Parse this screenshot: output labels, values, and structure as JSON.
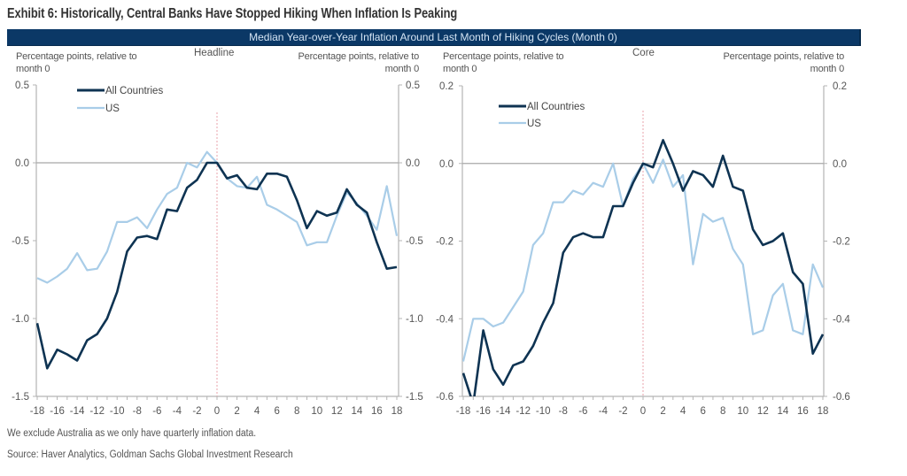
{
  "title": "Exhibit 6: Historically, Central Banks Have Stopped Hiking When Inflation Is Peaking",
  "banner": "Median Year-over-Year Inflation Around Last Month of Hiking Cycles (Month 0)",
  "footnotes": {
    "note": "We exclude Australia as we only have quarterly inflation data.",
    "source": "Source: Haver Analytics, Goldman Sachs Global Investment Research"
  },
  "colors": {
    "banner": "#0b3866",
    "all_countries": "#0e3352",
    "us": "#a9cde8",
    "reference_line": "#e9a3ab",
    "axis": "#b4b4b4"
  },
  "chart_data": [
    {
      "id": "headline",
      "type": "line",
      "title": "Headline",
      "ylabel_left": "Percentage points, relative to\nmonth 0",
      "ylabel_right": "Percentage points, relative to\nmonth 0",
      "xlabel": "",
      "xlim": [
        -18,
        18
      ],
      "ylim": [
        -1.5,
        0.5
      ],
      "x": [
        -18,
        -17,
        -16,
        -15,
        -14,
        -13,
        -12,
        -11,
        -10,
        -9,
        -8,
        -7,
        -6,
        -5,
        -4,
        -3,
        -2,
        -1,
        0,
        1,
        2,
        3,
        4,
        5,
        6,
        7,
        8,
        9,
        10,
        11,
        12,
        13,
        14,
        15,
        16,
        17,
        18
      ],
      "xticks": [
        -18,
        -16,
        -14,
        -12,
        -10,
        -8,
        -6,
        -4,
        -2,
        0,
        2,
        4,
        6,
        8,
        10,
        12,
        14,
        16,
        18
      ],
      "xtick_labels": [
        "-18",
        "-16",
        "-14",
        "-12",
        "-10",
        "-8",
        "-6",
        "-4",
        "-2",
        "0",
        "2",
        "4",
        "6",
        "8",
        "10",
        "12",
        "14",
        "16",
        "18"
      ],
      "yticks": [
        0.5,
        0.0,
        -0.5,
        -1.0,
        -1.5
      ],
      "ytick_labels": [
        "0.5",
        "0.0",
        "-0.5",
        "-1.0",
        "-1.5"
      ],
      "grid": false,
      "zero_line": true,
      "reference_line_x": 0,
      "legend": "top-left",
      "series": [
        {
          "name": "All Countries",
          "color": "#0e3352",
          "values": [
            -1.03,
            -1.32,
            -1.2,
            -1.23,
            -1.27,
            -1.14,
            -1.1,
            -1.0,
            -0.83,
            -0.57,
            -0.48,
            -0.47,
            -0.49,
            -0.3,
            -0.31,
            -0.16,
            -0.11,
            0.0,
            0.0,
            -0.1,
            -0.08,
            -0.16,
            -0.17,
            -0.07,
            -0.07,
            -0.09,
            -0.24,
            -0.42,
            -0.31,
            -0.34,
            -0.32,
            -0.17,
            -0.27,
            -0.32,
            -0.51,
            -0.68,
            -0.67
          ]
        },
        {
          "name": "US",
          "color": "#a9cde8",
          "values": [
            -0.74,
            -0.77,
            -0.73,
            -0.68,
            -0.58,
            -0.69,
            -0.68,
            -0.57,
            -0.38,
            -0.38,
            -0.35,
            -0.42,
            -0.3,
            -0.2,
            -0.16,
            0.0,
            -0.03,
            0.07,
            0.0,
            -0.1,
            -0.15,
            -0.16,
            -0.09,
            -0.27,
            -0.3,
            -0.34,
            -0.38,
            -0.53,
            -0.51,
            -0.51,
            -0.34,
            -0.19,
            -0.26,
            -0.34,
            -0.43,
            -0.15,
            -0.47
          ]
        }
      ]
    },
    {
      "id": "core",
      "type": "line",
      "title": "Core",
      "ylabel_left": "Percentage points, relative to\nmonth 0",
      "ylabel_right": "Percentage points, relative to\nmonth 0",
      "xlabel": "",
      "xlim": [
        -18,
        18
      ],
      "ylim": [
        -0.6,
        0.2
      ],
      "x": [
        -18,
        -17,
        -16,
        -15,
        -14,
        -13,
        -12,
        -11,
        -10,
        -9,
        -8,
        -7,
        -6,
        -5,
        -4,
        -3,
        -2,
        -1,
        0,
        1,
        2,
        3,
        4,
        5,
        6,
        7,
        8,
        9,
        10,
        11,
        12,
        13,
        14,
        15,
        16,
        17,
        18
      ],
      "xticks": [
        -18,
        -16,
        -14,
        -12,
        -10,
        -8,
        -6,
        -4,
        -2,
        0,
        2,
        4,
        6,
        8,
        10,
        12,
        14,
        16,
        18
      ],
      "xtick_labels": [
        "-18",
        "-16",
        "-14",
        "-12",
        "-10",
        "-8",
        "-6",
        "-4",
        "-2",
        "0",
        "2",
        "4",
        "6",
        "8",
        "10",
        "12",
        "14",
        "16",
        "18"
      ],
      "yticks": [
        0.2,
        0.0,
        -0.2,
        -0.4,
        -0.6
      ],
      "ytick_labels": [
        "0.2",
        "0.0",
        "-0.2",
        "-0.4",
        "-0.6"
      ],
      "grid": false,
      "zero_line": true,
      "reference_line_x": 0,
      "legend": "top-left",
      "series": [
        {
          "name": "All Countries",
          "color": "#0e3352",
          "values": [
            -0.54,
            -0.62,
            -0.43,
            -0.53,
            -0.57,
            -0.52,
            -0.51,
            -0.47,
            -0.41,
            -0.36,
            -0.23,
            -0.19,
            -0.18,
            -0.19,
            -0.19,
            -0.11,
            -0.11,
            -0.05,
            0.0,
            -0.01,
            0.06,
            0.0,
            -0.07,
            -0.02,
            -0.03,
            -0.06,
            0.02,
            -0.06,
            -0.07,
            -0.17,
            -0.21,
            -0.2,
            -0.18,
            -0.28,
            -0.31,
            -0.49,
            -0.44
          ]
        },
        {
          "name": "US",
          "color": "#a9cde8",
          "values": [
            -0.51,
            -0.4,
            -0.4,
            -0.42,
            -0.41,
            -0.37,
            -0.33,
            -0.21,
            -0.18,
            -0.1,
            -0.1,
            -0.07,
            -0.08,
            -0.05,
            -0.06,
            0.0,
            -0.11,
            -0.04,
            0.0,
            -0.05,
            0.01,
            -0.06,
            -0.03,
            -0.26,
            -0.13,
            -0.15,
            -0.14,
            -0.22,
            -0.26,
            -0.44,
            -0.43,
            -0.34,
            -0.31,
            -0.43,
            -0.44,
            -0.26,
            -0.32
          ]
        }
      ]
    }
  ]
}
